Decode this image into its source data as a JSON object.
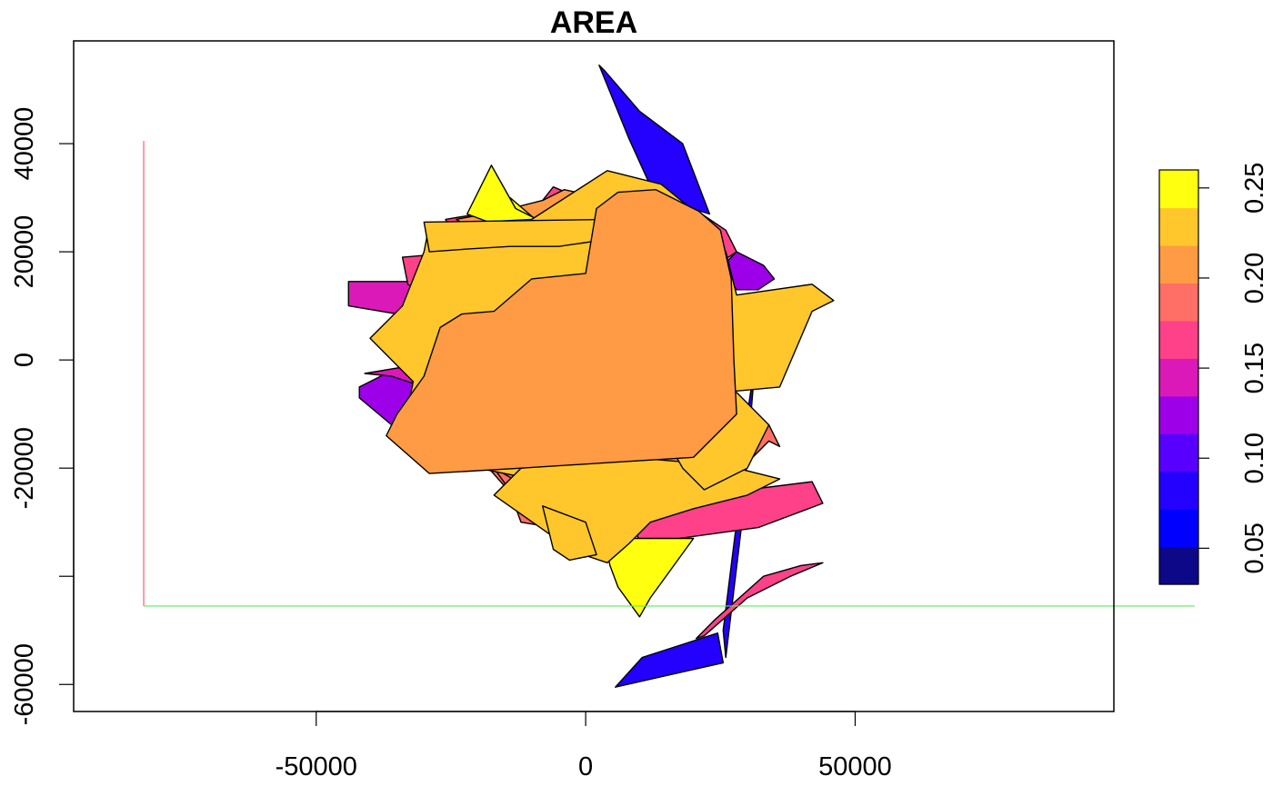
{
  "chart_data": {
    "type": "map",
    "title": "AREA",
    "xlim": [
      -95000,
      98000
    ],
    "ylim": [
      -65000,
      59000
    ],
    "x_ticks": [
      {
        "value": -50000,
        "label": "-50000"
      },
      {
        "value": 0,
        "label": "0"
      },
      {
        "value": 50000,
        "label": "50000"
      }
    ],
    "y_ticks": [
      {
        "value": -60000,
        "label": "-60000"
      },
      {
        "value": -40000,
        "label": ""
      },
      {
        "value": -20000,
        "label": "-20000"
      },
      {
        "value": 0,
        "label": "0"
      },
      {
        "value": 20000,
        "label": "20000"
      },
      {
        "value": 40000,
        "label": "40000"
      }
    ],
    "colorbar": {
      "range": [
        0.03,
        0.26
      ],
      "ticks": [
        {
          "value": 0.05,
          "label": "0.05"
        },
        {
          "value": 0.1,
          "label": "0.10"
        },
        {
          "value": 0.15,
          "label": "0.15"
        },
        {
          "value": 0.2,
          "label": "0.20"
        },
        {
          "value": 0.25,
          "label": "0.25"
        }
      ],
      "colors": [
        "#0D0887",
        "#0000FF",
        "#2400FF",
        "#5800FF",
        "#9D00E8",
        "#DB19B8",
        "#FF4189",
        "#FF6F65",
        "#FF9B45",
        "#FFC72C",
        "#FFFF10"
      ]
    },
    "guide_lines": {
      "vertical": {
        "x": -82000,
        "y_from": -45500,
        "y_to": 40500,
        "color": "#FF5B6B"
      },
      "horizontal": {
        "y": -45500,
        "x_from": -82000,
        "x_to": 113000,
        "color": "#5BEB5B"
      }
    },
    "polygons": [
      {
        "value": 0.09,
        "color": "#2400FF",
        "points": [
          [
            2500,
            54500
          ],
          [
            8000,
            41000
          ],
          [
            13000,
            30000
          ],
          [
            23000,
            27000
          ],
          [
            18000,
            40000
          ],
          [
            10000,
            46000
          ],
          [
            3500,
            53500
          ]
        ]
      },
      {
        "value": 0.09,
        "color": "#2400FF",
        "points": [
          [
            5500,
            -60500
          ],
          [
            10500,
            -55000
          ],
          [
            24500,
            -50500
          ],
          [
            25500,
            -56000
          ]
        ]
      },
      {
        "value": 0.09,
        "color": "#2400FF",
        "points": [
          [
            25500,
            -50000
          ],
          [
            28000,
            -30000
          ],
          [
            30000,
            -10000
          ],
          [
            31500,
            0
          ],
          [
            29000,
            -30000
          ],
          [
            26000,
            -55000
          ]
        ]
      },
      {
        "value": 0.12,
        "color": "#9D00E8",
        "points": [
          [
            -42000,
            -5000
          ],
          [
            -36000,
            -2000
          ],
          [
            -25000,
            -4000
          ],
          [
            -28000,
            -12000
          ],
          [
            -36000,
            -12000
          ],
          [
            -42000,
            -7000
          ]
        ]
      },
      {
        "value": 0.13,
        "color": "#9D00E8",
        "points": [
          [
            28000,
            20000
          ],
          [
            33000,
            17500
          ],
          [
            35000,
            15000
          ],
          [
            32000,
            13000
          ],
          [
            28000,
            13000
          ],
          [
            25000,
            17000
          ]
        ]
      },
      {
        "value": 0.14,
        "color": "#DB19B8",
        "points": [
          [
            -44000,
            14500
          ],
          [
            -28000,
            14500
          ],
          [
            -32000,
            8000
          ],
          [
            -44000,
            10000
          ]
        ]
      },
      {
        "value": 0.14,
        "color": "#DB19B8",
        "points": [
          [
            -41000,
            -2500
          ],
          [
            -32000,
            -1000
          ],
          [
            -30000,
            -5000
          ],
          [
            -36000,
            -3000
          ]
        ]
      },
      {
        "value": 0.16,
        "color": "#FF4189",
        "points": [
          [
            -34000,
            19000
          ],
          [
            -28000,
            19500
          ],
          [
            -30000,
            12000
          ],
          [
            -33000,
            14000
          ]
        ]
      },
      {
        "value": 0.16,
        "color": "#FF4189",
        "points": [
          [
            -26000,
            26000
          ],
          [
            -20000,
            27000
          ],
          [
            -16000,
            25500
          ],
          [
            -10000,
            27000
          ],
          [
            -6000,
            32000
          ],
          [
            0,
            29500
          ],
          [
            8000,
            31000
          ],
          [
            20000,
            28000
          ],
          [
            26000,
            24000
          ],
          [
            28000,
            20000
          ],
          [
            22000,
            16000
          ],
          [
            14000,
            20000
          ],
          [
            5000,
            22000
          ],
          [
            -5000,
            23500
          ],
          [
            -18000,
            23000
          ],
          [
            -24000,
            22000
          ]
        ]
      },
      {
        "value": 0.16,
        "color": "#FF4189",
        "points": [
          [
            9000,
            -30000
          ],
          [
            20000,
            -27000
          ],
          [
            30000,
            -24000
          ],
          [
            42000,
            -22500
          ],
          [
            44000,
            -26500
          ],
          [
            32000,
            -31000
          ],
          [
            10000,
            -34000
          ]
        ]
      },
      {
        "value": 0.16,
        "color": "#FF4189",
        "points": [
          [
            20500,
            -51500
          ],
          [
            24000,
            -48000
          ],
          [
            33000,
            -40000
          ],
          [
            40000,
            -38000
          ],
          [
            44000,
            -37500
          ],
          [
            38000,
            -40000
          ],
          [
            30000,
            -44000
          ],
          [
            22000,
            -51000
          ]
        ]
      },
      {
        "value": 0.19,
        "color": "#FF6F65",
        "points": [
          [
            -25000,
            -15000
          ],
          [
            -18000,
            -20000
          ],
          [
            -14000,
            -24500
          ],
          [
            -12000,
            -30000
          ],
          [
            -3000,
            -31500
          ],
          [
            4000,
            -28000
          ],
          [
            8000,
            -22000
          ],
          [
            14000,
            -24000
          ],
          [
            26000,
            -23000
          ],
          [
            32000,
            -17000
          ],
          [
            34000,
            -15000
          ],
          [
            36000,
            -16000
          ],
          [
            34000,
            -12000
          ],
          [
            28000,
            -10000
          ],
          [
            20000,
            -12000
          ],
          [
            8000,
            -15000
          ],
          [
            -8000,
            -14000
          ],
          [
            -20000,
            -14000
          ]
        ]
      },
      {
        "value": 0.19,
        "color": "#FF6F65",
        "points": [
          [
            -17000,
            -20000
          ],
          [
            -12000,
            -27000
          ],
          [
            -8000,
            -30000
          ],
          [
            -5000,
            -28000
          ],
          [
            -10000,
            -24000
          ]
        ]
      },
      {
        "value": 0.21,
        "color": "#FF9B45",
        "points": [
          [
            -24000,
            26000
          ],
          [
            -16000,
            27500
          ],
          [
            -8000,
            29500
          ],
          [
            -4000,
            31500
          ],
          [
            3000,
            30000
          ],
          [
            8000,
            26000
          ],
          [
            0,
            24500
          ],
          [
            -12000,
            23000
          ],
          [
            -20000,
            23500
          ]
        ]
      },
      {
        "value": 0.21,
        "color": "#FF9B45",
        "points": [
          [
            -25000,
            -16000
          ],
          [
            -18000,
            -18000
          ],
          [
            -10000,
            -21000
          ],
          [
            0,
            -21000
          ],
          [
            8000,
            -19000
          ],
          [
            14000,
            -20500
          ],
          [
            20000,
            -18000
          ],
          [
            16000,
            -14000
          ],
          [
            0,
            -14000
          ],
          [
            -16000,
            -14000
          ]
        ]
      },
      {
        "value": 0.25,
        "color": "#FFFF10",
        "points": [
          [
            -18500,
            25000
          ],
          [
            -14000,
            30000
          ],
          [
            -7000,
            24000
          ],
          [
            -10000,
            21000
          ]
        ]
      },
      {
        "value": 0.25,
        "color": "#FFFF10",
        "points": [
          [
            -22000,
            27000
          ],
          [
            -17500,
            36000
          ],
          [
            -13000,
            28000
          ],
          [
            -8000,
            25500
          ],
          [
            -14000,
            24000
          ]
        ]
      },
      {
        "value": 0.25,
        "color": "#FFFF10",
        "points": [
          [
            3500,
            -33000
          ],
          [
            20000,
            -33000
          ],
          [
            12000,
            -44000
          ],
          [
            10000,
            -47500
          ],
          [
            6000,
            -42000
          ],
          [
            4500,
            -38000
          ]
        ]
      },
      {
        "value": 0.23,
        "color": "#FFC72C",
        "points": [
          [
            -29000,
            25000
          ],
          [
            -10000,
            26000
          ],
          [
            4000,
            35000
          ],
          [
            14000,
            32500
          ],
          [
            22000,
            26000
          ],
          [
            26000,
            20000
          ],
          [
            28000,
            12000
          ],
          [
            42000,
            14000
          ],
          [
            46000,
            11000
          ],
          [
            42000,
            9000
          ],
          [
            36000,
            -5000
          ],
          [
            25000,
            -6000
          ],
          [
            16000,
            -15000
          ],
          [
            10000,
            -20000
          ],
          [
            4000,
            -24000
          ],
          [
            -2000,
            -24000
          ],
          [
            -10000,
            -22000
          ],
          [
            -20000,
            -20000
          ],
          [
            -28000,
            -18000
          ],
          [
            -34000,
            -14000
          ],
          [
            -32000,
            -4000
          ],
          [
            -40000,
            4000
          ],
          [
            -34000,
            10000
          ],
          [
            -30000,
            20000
          ]
        ]
      },
      {
        "value": 0.23,
        "color": "#FFC72C",
        "points": [
          [
            -30000,
            25500
          ],
          [
            5000,
            26000
          ],
          [
            2000,
            22000
          ],
          [
            -5000,
            21000
          ],
          [
            -14000,
            21000
          ],
          [
            -22000,
            20500
          ],
          [
            -29000,
            20000
          ]
        ]
      },
      {
        "value": 0.23,
        "color": "#FFC72C",
        "points": [
          [
            -17000,
            -25000
          ],
          [
            -12000,
            -20000
          ],
          [
            -2000,
            -19000
          ],
          [
            8000,
            -18000
          ],
          [
            20000,
            -19000
          ],
          [
            28000,
            -20000
          ],
          [
            36000,
            -22000
          ],
          [
            30000,
            -25000
          ],
          [
            20000,
            -27500
          ],
          [
            12000,
            -30000
          ],
          [
            8000,
            -34000
          ],
          [
            4000,
            -37500
          ],
          [
            -2000,
            -35500
          ]
        ]
      },
      {
        "value": 0.23,
        "color": "#FFC72C",
        "points": [
          [
            -8000,
            -27000
          ],
          [
            0,
            -30000
          ],
          [
            2000,
            -36000
          ],
          [
            -3000,
            -37000
          ],
          [
            -6000,
            -35000
          ]
        ]
      },
      {
        "value": 0.23,
        "color": "#FFC72C",
        "points": [
          [
            20000,
            -4000
          ],
          [
            28000,
            -6000
          ],
          [
            34000,
            -12000
          ],
          [
            30000,
            -20000
          ],
          [
            22000,
            -24000
          ],
          [
            18000,
            -20000
          ],
          [
            14000,
            -13000
          ]
        ]
      },
      {
        "value": 0.21,
        "color": "#FF9B45",
        "points": [
          [
            -29000,
            -21000
          ],
          [
            -12000,
            -20000
          ],
          [
            4000,
            -19000
          ],
          [
            20000,
            -18000
          ],
          [
            28000,
            -10000
          ],
          [
            27500,
            0
          ],
          [
            27000,
            15000
          ],
          [
            25000,
            24000
          ],
          [
            21000,
            27500
          ],
          [
            13000,
            31500
          ],
          [
            6000,
            31000
          ],
          [
            2000,
            28000
          ],
          [
            0,
            16000
          ],
          [
            -10000,
            15000
          ],
          [
            -17000,
            9000
          ],
          [
            -23000,
            8500
          ],
          [
            -27000,
            6000
          ],
          [
            -30000,
            -3000
          ],
          [
            -35000,
            -10000
          ],
          [
            -37000,
            -14000
          ]
        ]
      }
    ]
  }
}
